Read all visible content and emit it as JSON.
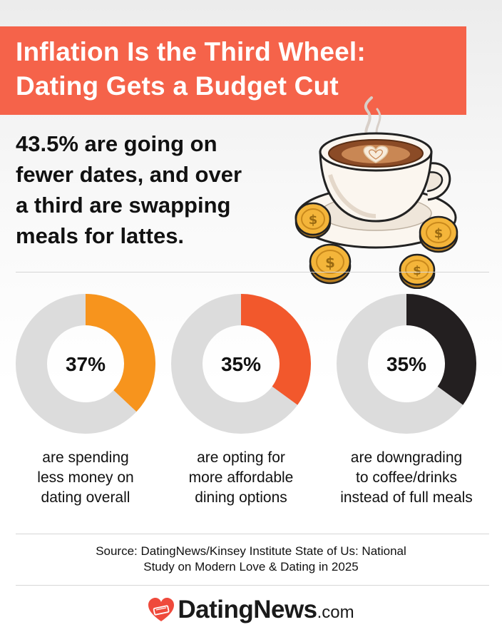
{
  "title": {
    "lines": [
      "Inflation Is the Third Wheel:",
      "Dating Gets a Budget Cut"
    ]
  },
  "headline": {
    "lines": [
      "43.5% are going on",
      "fewer dates, and over",
      "a third are swapping",
      "meals for lattes."
    ]
  },
  "colors": {
    "banner": "#f5634a",
    "track": "#dcdcdc",
    "donut1": "#f7941d",
    "donut2": "#f2582c",
    "donut3": "#231f20"
  },
  "icons": {
    "illustration": "coffee-cup-with-coins-icon",
    "logo": "heart-logo-icon"
  },
  "chart_data": [
    {
      "type": "pie",
      "variant": "donut",
      "value": 37,
      "label": "37%",
      "caption": [
        "are spending",
        "less money on",
        "dating overall"
      ]
    },
    {
      "type": "pie",
      "variant": "donut",
      "value": 35,
      "label": "35%",
      "caption": [
        "are opting for",
        "more affordable",
        "dining options"
      ]
    },
    {
      "type": "pie",
      "variant": "donut",
      "value": 35,
      "label": "35%",
      "caption": [
        "are downgrading",
        "to coffee/drinks",
        "instead of full meals"
      ]
    }
  ],
  "source": {
    "lines": [
      "Source: DatingNews/Kinsey Institute State of Us: National",
      "Study on Modern Love & Dating in 2025"
    ]
  },
  "logo": {
    "name": "DatingNews",
    "suffix": ".com"
  }
}
